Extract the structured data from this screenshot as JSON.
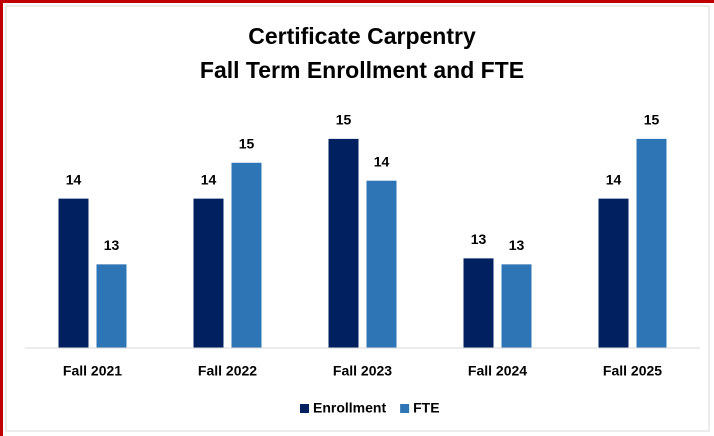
{
  "chart_data": {
    "type": "bar",
    "title": "Certificate Carpentry",
    "subtitle": "Fall Term Enrollment and FTE",
    "categories": [
      "Fall 2021",
      "Fall 2022",
      "Fall 2023",
      "Fall 2024",
      "Fall 2025"
    ],
    "series": [
      {
        "name": "Enrollment",
        "color": "#002060",
        "values": [
          14,
          14,
          15,
          13,
          14
        ]
      },
      {
        "name": "FTE",
        "color": "#2e75b6",
        "values": [
          12.9,
          14.6,
          14.3,
          12.9,
          15.0
        ],
        "value_labels": [
          "13",
          "15",
          "14",
          "13",
          "15"
        ]
      }
    ],
    "ylim": [
      11.5,
      15.5
    ],
    "legend": "bottom"
  }
}
